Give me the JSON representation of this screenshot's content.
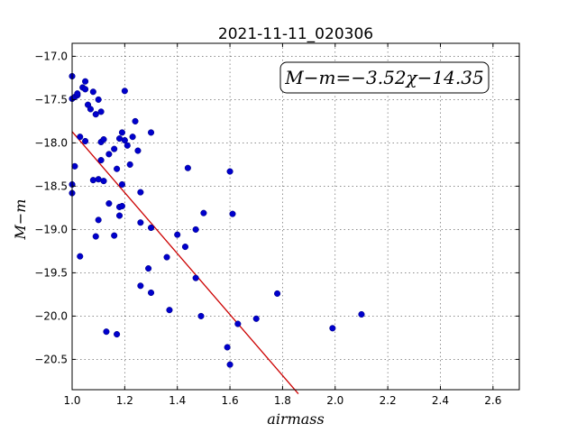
{
  "chart_data": {
    "type": "scatter",
    "title": "2021-11-11_020306",
    "xlabel": "airmass",
    "ylabel": "M−m",
    "xlim": [
      1.0,
      2.7
    ],
    "ylim": [
      -20.85,
      -16.85
    ],
    "y_inverted": true,
    "grid": true,
    "x_ticks": [
      1.0,
      1.2,
      1.4,
      1.6,
      1.8,
      2.0,
      2.2,
      2.4,
      2.6
    ],
    "x_tick_labels": [
      "1.0",
      "1.2",
      "1.4",
      "1.6",
      "1.8",
      "2.0",
      "2.2",
      "2.4",
      "2.6"
    ],
    "y_ticks": [
      -17.0,
      -17.5,
      -18.0,
      -18.5,
      -19.0,
      -19.5,
      -20.0,
      -20.5
    ],
    "y_tick_labels": [
      "−17.0",
      "−17.5",
      "−18.0",
      "−18.5",
      "−19.0",
      "−19.5",
      "−20.0",
      "−20.5"
    ],
    "annotation": "M−m=−3.52χ−14.35",
    "fit": {
      "slope": -3.52,
      "intercept": -14.35,
      "x_range": [
        1.0,
        1.86
      ],
      "color": "#cc0000"
    },
    "marker_color": "#0000cc",
    "points": [
      [
        1.0,
        -17.23
      ],
      [
        1.0,
        -17.49
      ],
      [
        1.01,
        -17.47
      ],
      [
        1.02,
        -17.45
      ],
      [
        1.02,
        -17.43
      ],
      [
        1.0,
        -18.48
      ],
      [
        1.0,
        -18.58
      ],
      [
        1.01,
        -18.27
      ],
      [
        1.03,
        -17.93
      ],
      [
        1.04,
        -17.36
      ],
      [
        1.05,
        -17.29
      ],
      [
        1.05,
        -17.38
      ],
      [
        1.05,
        -17.98
      ],
      [
        1.06,
        -17.56
      ],
      [
        1.07,
        -17.61
      ],
      [
        1.08,
        -17.41
      ],
      [
        1.09,
        -17.67
      ],
      [
        1.1,
        -17.5
      ],
      [
        1.11,
        -17.64
      ],
      [
        1.11,
        -17.99
      ],
      [
        1.12,
        -17.96
      ],
      [
        1.03,
        -19.31
      ],
      [
        1.08,
        -18.43
      ],
      [
        1.1,
        -18.42
      ],
      [
        1.12,
        -18.44
      ],
      [
        1.09,
        -19.08
      ],
      [
        1.1,
        -18.89
      ],
      [
        1.11,
        -18.2
      ],
      [
        1.14,
        -18.13
      ],
      [
        1.14,
        -18.7
      ],
      [
        1.16,
        -18.07
      ],
      [
        1.17,
        -18.3
      ],
      [
        1.18,
        -17.95
      ],
      [
        1.19,
        -17.88
      ],
      [
        1.2,
        -17.97
      ],
      [
        1.2,
        -17.4
      ],
      [
        1.21,
        -18.03
      ],
      [
        1.22,
        -18.25
      ],
      [
        1.23,
        -17.93
      ],
      [
        1.24,
        -17.75
      ],
      [
        1.25,
        -18.09
      ],
      [
        1.26,
        -18.57
      ],
      [
        1.19,
        -18.48
      ],
      [
        1.18,
        -18.74
      ],
      [
        1.19,
        -18.73
      ],
      [
        1.18,
        -18.84
      ],
      [
        1.16,
        -19.07
      ],
      [
        1.26,
        -18.92
      ],
      [
        1.3,
        -18.98
      ],
      [
        1.3,
        -17.88
      ],
      [
        1.29,
        -19.45
      ],
      [
        1.3,
        -19.73
      ],
      [
        1.26,
        -19.65
      ],
      [
        1.36,
        -19.32
      ],
      [
        1.37,
        -19.93
      ],
      [
        1.4,
        -19.06
      ],
      [
        1.43,
        -19.2
      ],
      [
        1.44,
        -18.29
      ],
      [
        1.47,
        -19.0
      ],
      [
        1.47,
        -19.56
      ],
      [
        1.49,
        -20.0
      ],
      [
        1.5,
        -18.81
      ],
      [
        1.13,
        -20.18
      ],
      [
        1.17,
        -20.21
      ],
      [
        1.59,
        -20.36
      ],
      [
        1.6,
        -20.56
      ],
      [
        1.6,
        -18.33
      ],
      [
        1.61,
        -18.82
      ],
      [
        1.63,
        -20.09
      ],
      [
        1.7,
        -20.03
      ],
      [
        1.78,
        -19.74
      ],
      [
        1.99,
        -20.14
      ],
      [
        2.1,
        -19.98
      ]
    ]
  }
}
